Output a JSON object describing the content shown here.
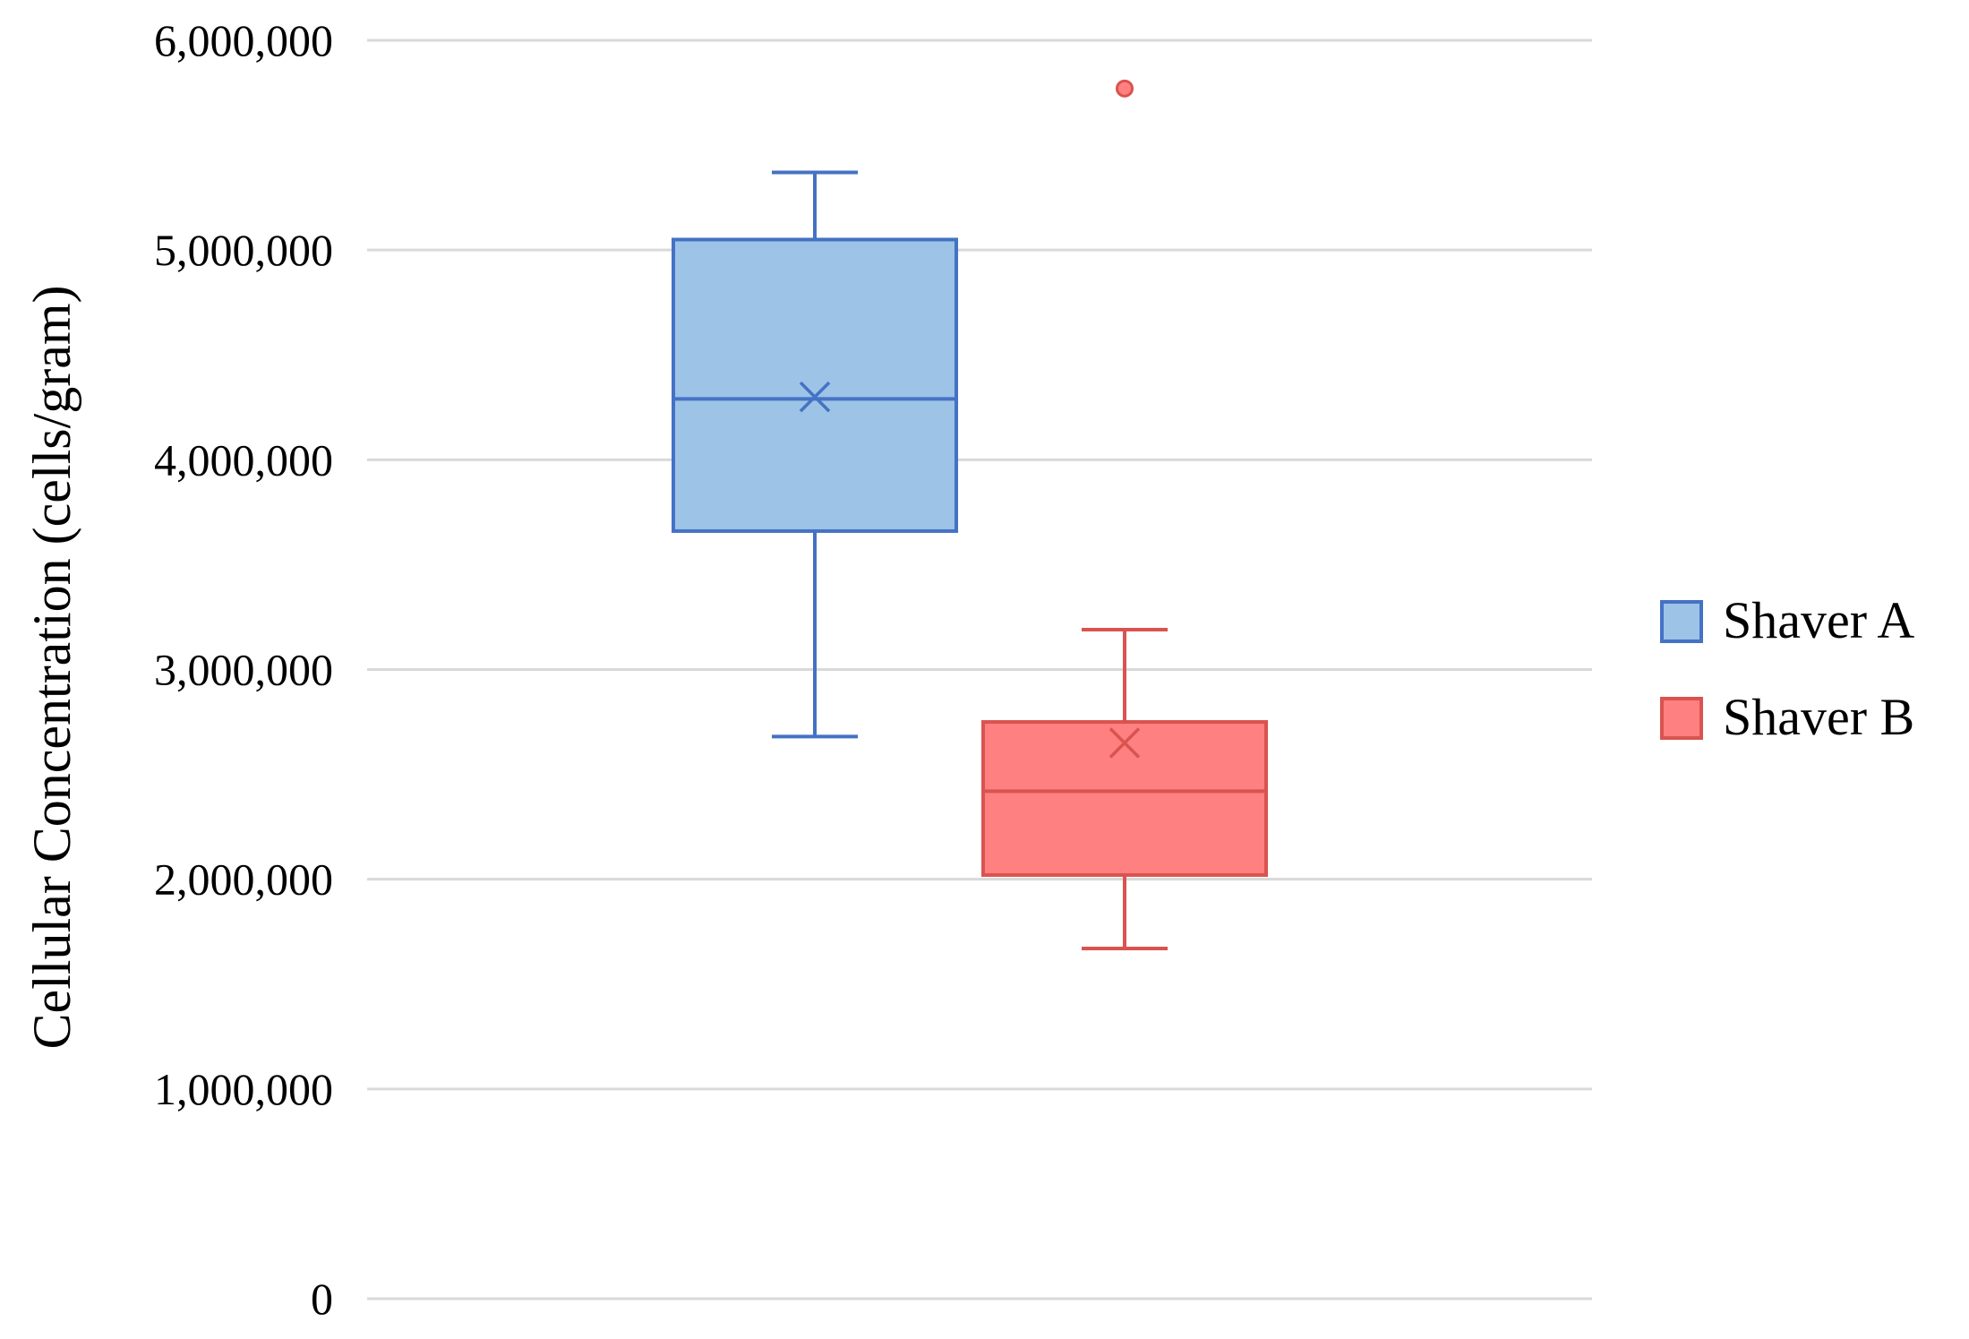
{
  "chart_data": {
    "type": "box",
    "title": "",
    "xlabel": "",
    "ylabel": "Cellular Concentration (cells/gram)",
    "ylim": [
      0,
      6000000
    ],
    "yticks": [
      0,
      1000000,
      2000000,
      3000000,
      4000000,
      5000000,
      6000000
    ],
    "ytick_labels": [
      "0",
      "1,000,000",
      "2,000,000",
      "3,000,000",
      "4,000,000",
      "5,000,000",
      "6,000,000"
    ],
    "grid": true,
    "legend_position": "right",
    "series": [
      {
        "name": "Shaver A",
        "color": "#4472c4",
        "fill": "#9dc3e6",
        "whisker_low": 2680000,
        "q1": 3660000,
        "median": 4290000,
        "mean": 4300000,
        "q3": 5050000,
        "whisker_high": 5370000,
        "outliers": []
      },
      {
        "name": "Shaver B",
        "color": "#d9534f",
        "fill": "#ff8080",
        "whisker_low": 1670000,
        "q1": 2020000,
        "median": 2420000,
        "mean": 2650000,
        "q3": 2750000,
        "whisker_high": 3190000,
        "outliers": [
          5770000
        ]
      }
    ]
  }
}
